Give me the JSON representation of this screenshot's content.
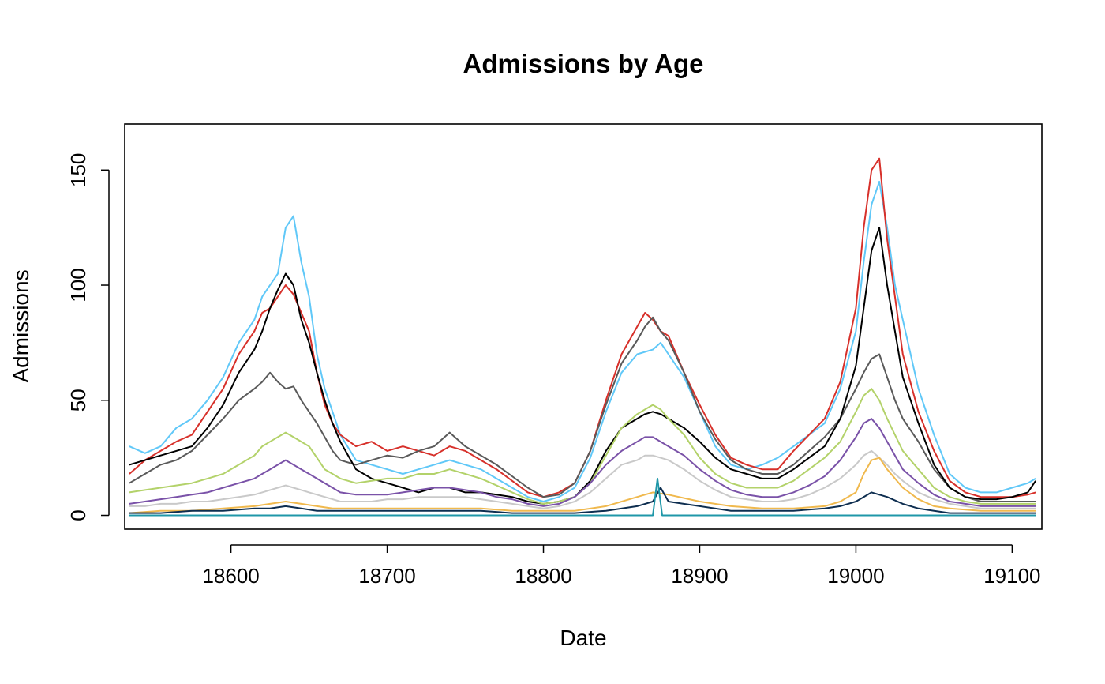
{
  "chart_data": {
    "type": "line",
    "title": "Admissions by Age",
    "xlabel": "Date",
    "ylabel": "Admissions",
    "xlim": [
      18532,
      19119
    ],
    "ylim": [
      -6,
      170
    ],
    "xticks": [
      18600,
      18700,
      18800,
      18900,
      19000,
      19100
    ],
    "yticks": [
      0,
      50,
      100,
      150
    ],
    "grid": false,
    "legend": "none",
    "series": [
      {
        "color": "#60C8F8",
        "x": [
          18535,
          18545,
          18555,
          18565,
          18575,
          18585,
          18595,
          18605,
          18615,
          18620,
          18625,
          18630,
          18635,
          18640,
          18645,
          18650,
          18655,
          18660,
          18665,
          18670,
          18680,
          18690,
          18700,
          18710,
          18720,
          18730,
          18740,
          18750,
          18760,
          18770,
          18780,
          18790,
          18800,
          18810,
          18820,
          18830,
          18840,
          18850,
          18860,
          18870,
          18875,
          18880,
          18890,
          18900,
          18910,
          18920,
          18930,
          18940,
          18950,
          18960,
          18970,
          18980,
          18990,
          19000,
          19005,
          19010,
          19015,
          19020,
          19025,
          19030,
          19040,
          19050,
          19060,
          19070,
          19080,
          19090,
          19100,
          19110,
          19115
        ],
        "y": [
          30,
          27,
          30,
          38,
          42,
          50,
          60,
          75,
          85,
          95,
          100,
          105,
          125,
          130,
          110,
          95,
          70,
          55,
          45,
          35,
          24,
          22,
          20,
          18,
          20,
          22,
          24,
          22,
          20,
          16,
          12,
          8,
          6,
          8,
          12,
          25,
          45,
          62,
          70,
          72,
          75,
          70,
          60,
          45,
          30,
          22,
          20,
          22,
          25,
          30,
          35,
          40,
          55,
          80,
          110,
          135,
          145,
          125,
          100,
          85,
          55,
          35,
          18,
          12,
          10,
          10,
          12,
          14,
          16
        ]
      },
      {
        "color": "#D7302A",
        "x": [
          18535,
          18545,
          18555,
          18565,
          18575,
          18585,
          18595,
          18605,
          18615,
          18620,
          18625,
          18630,
          18635,
          18640,
          18645,
          18650,
          18655,
          18660,
          18665,
          18670,
          18680,
          18690,
          18700,
          18710,
          18720,
          18730,
          18740,
          18750,
          18760,
          18770,
          18780,
          18790,
          18800,
          18810,
          18820,
          18830,
          18840,
          18850,
          18860,
          18865,
          18870,
          18875,
          18880,
          18890,
          18900,
          18910,
          18920,
          18930,
          18940,
          18950,
          18960,
          18970,
          18980,
          18990,
          19000,
          19005,
          19010,
          19015,
          19020,
          19025,
          19030,
          19040,
          19050,
          19060,
          19070,
          19080,
          19090,
          19100,
          19110,
          19115
        ],
        "y": [
          18,
          24,
          28,
          32,
          35,
          45,
          55,
          70,
          80,
          88,
          90,
          95,
          100,
          96,
          88,
          80,
          62,
          48,
          40,
          35,
          30,
          32,
          28,
          30,
          28,
          26,
          30,
          28,
          24,
          20,
          15,
          10,
          8,
          10,
          14,
          28,
          50,
          70,
          82,
          88,
          85,
          80,
          78,
          62,
          48,
          35,
          25,
          22,
          20,
          20,
          28,
          35,
          42,
          58,
          90,
          125,
          150,
          155,
          120,
          95,
          70,
          45,
          28,
          15,
          10,
          8,
          8,
          8,
          9,
          10
        ]
      },
      {
        "color": "#5A5A5A",
        "x": [
          18535,
          18545,
          18555,
          18565,
          18575,
          18585,
          18595,
          18605,
          18615,
          18620,
          18625,
          18630,
          18635,
          18640,
          18645,
          18650,
          18655,
          18660,
          18665,
          18670,
          18680,
          18690,
          18700,
          18710,
          18720,
          18730,
          18740,
          18750,
          18760,
          18770,
          18780,
          18790,
          18800,
          18810,
          18820,
          18830,
          18840,
          18850,
          18860,
          18865,
          18870,
          18875,
          18880,
          18890,
          18900,
          18910,
          18920,
          18930,
          18940,
          18950,
          18960,
          18970,
          18980,
          18990,
          19000,
          19005,
          19010,
          19015,
          19020,
          19025,
          19030,
          19040,
          19050,
          19060,
          19070,
          19080,
          19090,
          19100,
          19110,
          19115
        ],
        "y": [
          14,
          18,
          22,
          24,
          28,
          35,
          42,
          50,
          55,
          58,
          62,
          58,
          55,
          56,
          50,
          45,
          40,
          34,
          28,
          24,
          22,
          24,
          26,
          25,
          28,
          30,
          36,
          30,
          26,
          22,
          17,
          12,
          8,
          9,
          14,
          28,
          48,
          66,
          76,
          82,
          86,
          80,
          76,
          62,
          45,
          33,
          24,
          20,
          18,
          18,
          22,
          28,
          34,
          42,
          55,
          62,
          68,
          70,
          60,
          50,
          42,
          32,
          20,
          12,
          8,
          6,
          6,
          6,
          6,
          6
        ]
      },
      {
        "color": "#000000",
        "x": [
          18535,
          18545,
          18555,
          18565,
          18575,
          18585,
          18595,
          18605,
          18615,
          18620,
          18625,
          18630,
          18635,
          18640,
          18645,
          18650,
          18655,
          18660,
          18665,
          18670,
          18680,
          18690,
          18700,
          18710,
          18720,
          18730,
          18740,
          18750,
          18760,
          18770,
          18780,
          18790,
          18800,
          18810,
          18820,
          18830,
          18840,
          18850,
          18860,
          18865,
          18870,
          18875,
          18880,
          18890,
          18900,
          18910,
          18920,
          18930,
          18940,
          18950,
          18960,
          18970,
          18980,
          18990,
          19000,
          19005,
          19010,
          19015,
          19020,
          19025,
          19030,
          19040,
          19050,
          19060,
          19070,
          19080,
          19090,
          19100,
          19110,
          19115
        ],
        "y": [
          22,
          24,
          26,
          28,
          30,
          38,
          48,
          62,
          72,
          80,
          90,
          98,
          105,
          100,
          85,
          75,
          62,
          50,
          40,
          32,
          20,
          16,
          14,
          12,
          10,
          12,
          12,
          10,
          10,
          9,
          8,
          6,
          5,
          6,
          8,
          15,
          28,
          38,
          42,
          44,
          45,
          44,
          42,
          38,
          32,
          25,
          20,
          18,
          16,
          16,
          20,
          25,
          30,
          42,
          65,
          90,
          115,
          125,
          100,
          80,
          60,
          40,
          22,
          12,
          8,
          7,
          7,
          8,
          10,
          15
        ]
      },
      {
        "color": "#B3D26A",
        "x": [
          18535,
          18545,
          18555,
          18565,
          18575,
          18585,
          18595,
          18605,
          18615,
          18620,
          18625,
          18630,
          18635,
          18640,
          18645,
          18650,
          18655,
          18660,
          18665,
          18670,
          18680,
          18690,
          18700,
          18710,
          18720,
          18730,
          18740,
          18750,
          18760,
          18770,
          18780,
          18790,
          18800,
          18810,
          18820,
          18830,
          18840,
          18850,
          18860,
          18865,
          18870,
          18875,
          18880,
          18890,
          18900,
          18910,
          18920,
          18930,
          18940,
          18950,
          18960,
          18970,
          18980,
          18990,
          19000,
          19005,
          19010,
          19015,
          19020,
          19025,
          19030,
          19040,
          19050,
          19060,
          19070,
          19080,
          19090,
          19100,
          19110,
          19115
        ],
        "y": [
          10,
          11,
          12,
          13,
          14,
          16,
          18,
          22,
          26,
          30,
          32,
          34,
          36,
          34,
          32,
          30,
          25,
          20,
          18,
          16,
          14,
          15,
          16,
          16,
          18,
          18,
          20,
          18,
          16,
          13,
          10,
          7,
          5,
          6,
          8,
          14,
          26,
          38,
          44,
          46,
          48,
          46,
          42,
          35,
          25,
          18,
          14,
          12,
          12,
          12,
          15,
          20,
          25,
          32,
          45,
          52,
          55,
          50,
          42,
          35,
          28,
          20,
          12,
          8,
          6,
          5,
          5,
          5,
          5,
          5
        ]
      },
      {
        "color": "#7A52A8",
        "x": [
          18535,
          18545,
          18555,
          18565,
          18575,
          18585,
          18595,
          18605,
          18615,
          18620,
          18625,
          18630,
          18635,
          18640,
          18645,
          18650,
          18655,
          18660,
          18665,
          18670,
          18680,
          18690,
          18700,
          18710,
          18720,
          18730,
          18740,
          18750,
          18760,
          18770,
          18780,
          18790,
          18800,
          18810,
          18820,
          18830,
          18840,
          18850,
          18860,
          18865,
          18870,
          18875,
          18880,
          18890,
          18900,
          18910,
          18920,
          18930,
          18940,
          18950,
          18960,
          18970,
          18980,
          18990,
          19000,
          19005,
          19010,
          19015,
          19020,
          19025,
          19030,
          19040,
          19050,
          19060,
          19070,
          19080,
          19090,
          19100,
          19110,
          19115
        ],
        "y": [
          5,
          6,
          7,
          8,
          9,
          10,
          12,
          14,
          16,
          18,
          20,
          22,
          24,
          22,
          20,
          18,
          16,
          14,
          12,
          10,
          9,
          9,
          9,
          10,
          11,
          12,
          12,
          11,
          10,
          8,
          7,
          5,
          4,
          5,
          8,
          14,
          22,
          28,
          32,
          34,
          34,
          32,
          30,
          26,
          20,
          15,
          11,
          9,
          8,
          8,
          10,
          13,
          17,
          24,
          34,
          40,
          42,
          38,
          32,
          26,
          20,
          14,
          9,
          6,
          5,
          4,
          4,
          4,
          4,
          4
        ]
      },
      {
        "color": "#C9C9C9",
        "x": [
          18535,
          18545,
          18555,
          18565,
          18575,
          18585,
          18595,
          18605,
          18615,
          18620,
          18625,
          18630,
          18635,
          18640,
          18645,
          18650,
          18655,
          18660,
          18665,
          18670,
          18680,
          18690,
          18700,
          18710,
          18720,
          18730,
          18740,
          18750,
          18760,
          18770,
          18780,
          18790,
          18800,
          18810,
          18820,
          18830,
          18840,
          18850,
          18860,
          18865,
          18870,
          18875,
          18880,
          18890,
          18900,
          18910,
          18920,
          18930,
          18940,
          18950,
          18960,
          18970,
          18980,
          18990,
          19000,
          19005,
          19010,
          19015,
          19020,
          19025,
          19030,
          19040,
          19050,
          19060,
          19070,
          19080,
          19090,
          19100,
          19110,
          19115
        ],
        "y": [
          4,
          4,
          5,
          5,
          6,
          6,
          7,
          8,
          9,
          10,
          11,
          12,
          13,
          12,
          11,
          10,
          9,
          8,
          7,
          6,
          6,
          6,
          7,
          7,
          8,
          8,
          8,
          8,
          7,
          6,
          5,
          4,
          3,
          4,
          6,
          10,
          16,
          22,
          24,
          26,
          26,
          25,
          24,
          20,
          15,
          11,
          8,
          7,
          6,
          6,
          7,
          9,
          12,
          16,
          22,
          26,
          28,
          25,
          22,
          18,
          15,
          10,
          7,
          5,
          4,
          3,
          3,
          3,
          3,
          3
        ]
      },
      {
        "color": "#F0B94E",
        "x": [
          18535,
          18555,
          18575,
          18595,
          18615,
          18625,
          18635,
          18645,
          18655,
          18665,
          18680,
          18700,
          18720,
          18740,
          18760,
          18780,
          18800,
          18820,
          18840,
          18860,
          18870,
          18880,
          18900,
          18920,
          18940,
          18960,
          18980,
          18990,
          19000,
          19005,
          19010,
          19015,
          19020,
          19030,
          19040,
          19050,
          19060,
          19080,
          19100,
          19115
        ],
        "y": [
          1,
          2,
          2,
          3,
          4,
          5,
          6,
          5,
          4,
          3,
          3,
          3,
          3,
          3,
          3,
          2,
          2,
          2,
          4,
          8,
          10,
          9,
          6,
          4,
          3,
          3,
          4,
          6,
          10,
          18,
          24,
          25,
          20,
          12,
          7,
          4,
          3,
          2,
          2,
          2
        ]
      },
      {
        "color": "#0E2E50",
        "x": [
          18535,
          18555,
          18575,
          18595,
          18615,
          18625,
          18635,
          18645,
          18655,
          18665,
          18680,
          18700,
          18720,
          18740,
          18760,
          18780,
          18800,
          18820,
          18840,
          18860,
          18870,
          18875,
          18880,
          18900,
          18920,
          18940,
          18960,
          18980,
          18990,
          19000,
          19005,
          19010,
          19015,
          19020,
          19030,
          19040,
          19050,
          19060,
          19080,
          19100,
          19115
        ],
        "y": [
          1,
          1,
          2,
          2,
          3,
          3,
          4,
          3,
          2,
          2,
          2,
          2,
          2,
          2,
          2,
          1,
          1,
          1,
          2,
          4,
          6,
          12,
          6,
          4,
          2,
          2,
          2,
          3,
          4,
          6,
          8,
          10,
          9,
          8,
          5,
          3,
          2,
          1,
          1,
          1,
          1
        ]
      },
      {
        "color": "#1F97A8",
        "x": [
          18535,
          18600,
          18700,
          18800,
          18860,
          18870,
          18873,
          18876,
          18880,
          18890,
          18950,
          19000,
          19050,
          19115
        ],
        "y": [
          0,
          0,
          0,
          0,
          0,
          0,
          16,
          0,
          0,
          0,
          0,
          0,
          0,
          0
        ]
      }
    ]
  }
}
